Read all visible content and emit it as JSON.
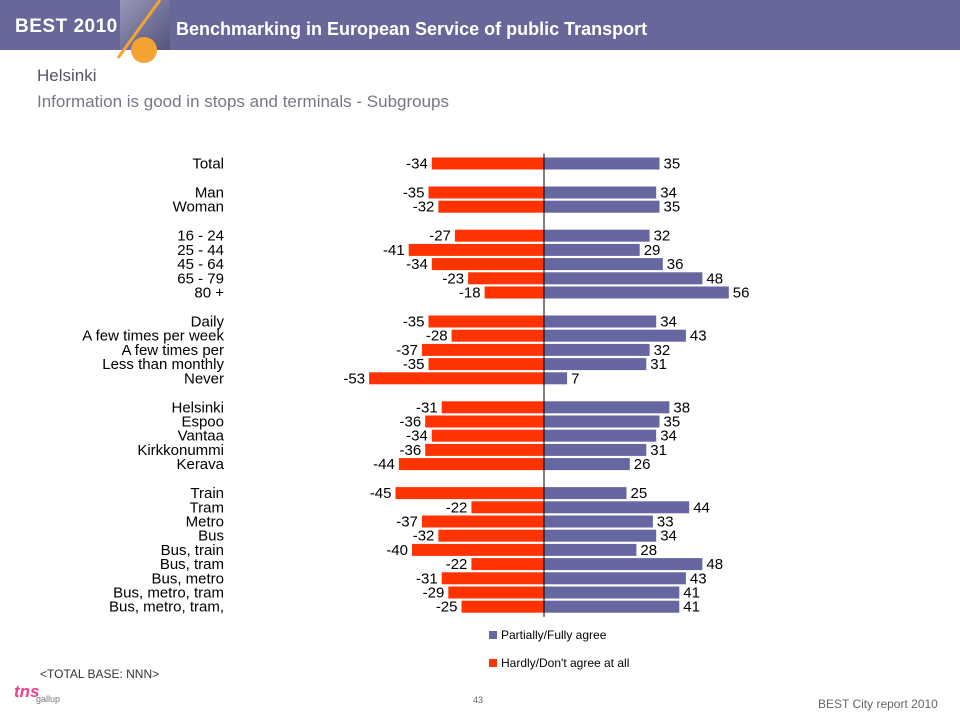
{
  "header": {
    "brand": "BEST 2010",
    "title": "Benchmarking in European Service of public Transport"
  },
  "page": {
    "city": "Helsinki",
    "subtitle": "Information is good in stops and terminals - Subgroups"
  },
  "colors": {
    "agree": "#6666a0",
    "disagree": "#ff3300",
    "header_bg": "#67679a",
    "accent": "#f5a235"
  },
  "chart_data": {
    "type": "bar",
    "orientation": "horizontal-diverging",
    "categories": [
      "Total",
      "Man",
      "Woman",
      "16 - 24",
      "25 - 44",
      "45 - 64",
      "65 - 79",
      "80 +",
      "Daily",
      "A few times per week",
      "A few times per",
      "Less than monthly",
      "Never",
      "Helsinki",
      "Espoo",
      "Vantaa",
      "Kirkkonummi",
      "Kerava",
      "Train",
      "Tram",
      "Metro",
      "Bus",
      "Bus, train",
      "Bus, tram",
      "Bus, metro",
      "Bus, metro, tram",
      "Bus, metro, tram,"
    ],
    "groups": [
      [
        0
      ],
      [
        1,
        2
      ],
      [
        3,
        4,
        5,
        6,
        7
      ],
      [
        8,
        9,
        10,
        11,
        12
      ],
      [
        13,
        14,
        15,
        16,
        17
      ],
      [
        18,
        19,
        20,
        21,
        22,
        23,
        24,
        25,
        26
      ]
    ],
    "series": [
      {
        "name": "Partially/Fully agree",
        "values": [
          35,
          34,
          35,
          32,
          29,
          36,
          48,
          56,
          34,
          43,
          32,
          31,
          7,
          38,
          35,
          34,
          31,
          26,
          25,
          44,
          33,
          34,
          28,
          48,
          43,
          41,
          41
        ]
      },
      {
        "name": "Hardly/Don't agree at all",
        "values": [
          -34,
          -35,
          -32,
          -27,
          -41,
          -34,
          -23,
          -18,
          -35,
          -28,
          -37,
          -35,
          -53,
          -31,
          -36,
          -34,
          -36,
          -44,
          -45,
          -22,
          -37,
          -32,
          -40,
          -22,
          -31,
          -29,
          -25
        ]
      }
    ],
    "legend_position": "bottom-right"
  },
  "footer": {
    "base_note": "<TOTAL BASE: NNN>",
    "page_number": "43",
    "report": "BEST City report 2010",
    "logo_main": "tns",
    "logo_sub": "gallup"
  }
}
